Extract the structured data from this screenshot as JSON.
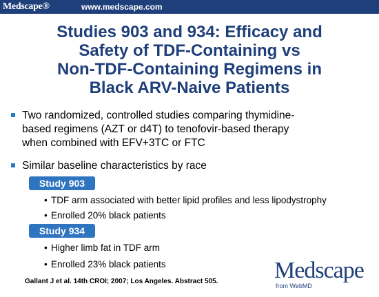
{
  "header": {
    "brand": "Medscape®",
    "url": "www.medscape.com"
  },
  "title": {
    "line1": "Studies 903 and 934: Efficacy and",
    "line2": "Safety of TDF-Containing vs",
    "line3": "Non-TDF-Containing Regimens in",
    "line4": "Black ARV-Naive Patients"
  },
  "bullets": [
    {
      "line1": "Two randomized, controlled studies comparing thymidine-",
      "line2": "based regimens (AZT or d4T) to tenofovir-based therapy",
      "line3": "when combined with EFV+3TC or FTC"
    },
    {
      "line1": "Similar baseline characteristics by race"
    }
  ],
  "studies": [
    {
      "label": "Study 903",
      "points": [
        "TDF arm associated with better lipid profiles and less lipodystrophy",
        "Enrolled 20% black patients"
      ]
    },
    {
      "label": "Study 934",
      "points": [
        "Higher limb fat in TDF arm",
        "Enrolled 23% black patients"
      ]
    }
  ],
  "citation": "Gallant J et al. 14th CROI; 2007; Los Angeles. Abstract 505.",
  "logo": {
    "word": "Medscape",
    "tagline": "from WebMD"
  },
  "colors": {
    "navy": "#1f3f7a",
    "accent": "#2f74c0"
  }
}
